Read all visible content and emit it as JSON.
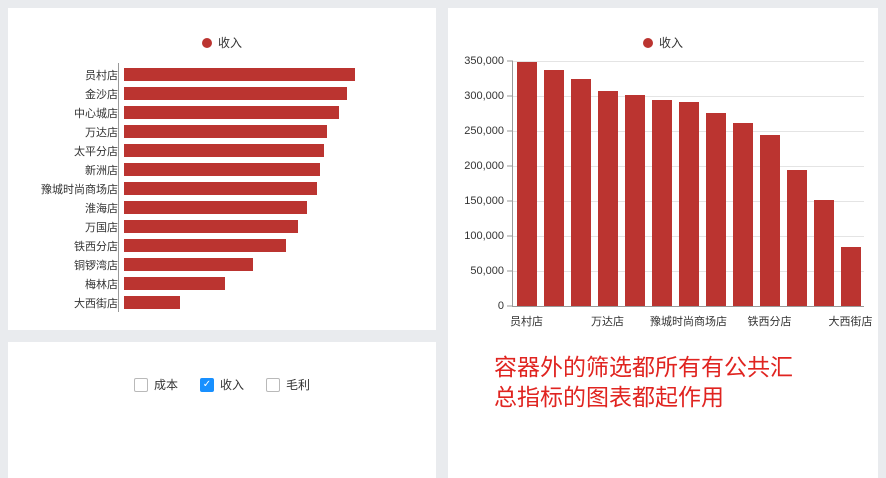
{
  "colors": {
    "bar": "#bb3430",
    "checked_checkbox": "#1890ff",
    "annotation": "#e02420",
    "axis": "#999999",
    "grid": "#e4e4e4",
    "text": "#333333",
    "page_background": "#e9ebee",
    "card_background": "#ffffff"
  },
  "chart_data": [
    {
      "type": "bar",
      "orientation": "horizontal",
      "legend": [
        "收入"
      ],
      "legend_position": "top",
      "categories": [
        "员村店",
        "金沙店",
        "中心城店",
        "万达店",
        "太平分店",
        "新洲店",
        "豫城时尚商场店",
        "淮海店",
        "万国店",
        "铁西分店",
        "铜锣湾店",
        "梅林店",
        "大西街店"
      ],
      "series": [
        {
          "name": "收入",
          "values": [
            348000,
            337000,
            325000,
            307000,
            302000,
            295000,
            291000,
            276000,
            262000,
            245000,
            195000,
            152000,
            84000
          ]
        }
      ],
      "xlim": [
        0,
        350000
      ],
      "grid": false,
      "bar_color": "#bb3430"
    },
    {
      "type": "bar",
      "orientation": "vertical",
      "legend": [
        "收入"
      ],
      "legend_position": "top",
      "categories": [
        "员村店",
        "金沙店",
        "中心城店",
        "万达店",
        "太平分店",
        "新洲店",
        "豫城时尚商场店",
        "淮海店",
        "万国店",
        "铁西分店",
        "铜锣湾店",
        "梅林店",
        "大西街店"
      ],
      "series": [
        {
          "name": "收入",
          "values": [
            348000,
            337000,
            325000,
            307000,
            302000,
            295000,
            291000,
            276000,
            262000,
            245000,
            195000,
            152000,
            84000
          ]
        }
      ],
      "ylim": [
        0,
        350000
      ],
      "ytick_labels": [
        "0",
        "50,000",
        "100,000",
        "150,000",
        "200,000",
        "250,000",
        "300,000",
        "350,000"
      ],
      "xtick_label_indices": [
        0,
        3,
        6,
        9,
        12
      ],
      "xtick_labels_visible": [
        "员村店",
        "万达店",
        "豫城时尚商场店",
        "铁西分店",
        "大西街店"
      ],
      "grid": true,
      "bar_color": "#bb3430"
    }
  ],
  "filter_panel": {
    "options": [
      {
        "label": "成本",
        "checked": false
      },
      {
        "label": "收入",
        "checked": true
      },
      {
        "label": "毛利",
        "checked": false
      }
    ]
  },
  "annotation": {
    "lines": [
      "容器外的筛选都所有有公共汇",
      "总指标的图表都起作用"
    ],
    "color": "#e02420"
  }
}
